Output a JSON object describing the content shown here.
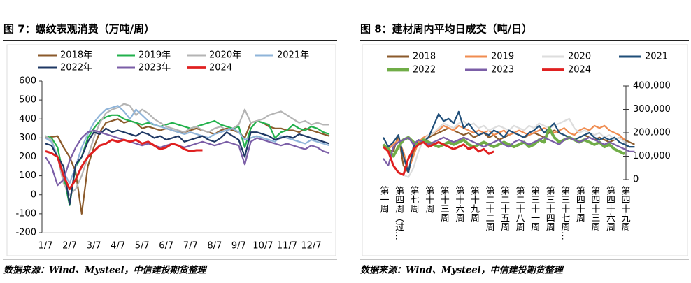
{
  "chart_data": [
    {
      "type": "line",
      "title": "图 7：螺纹表观消费（万吨/周）",
      "source": "数据来源：Wind、Mysteel，中信建投期货整理",
      "y_axis_position": "left",
      "categories": [
        "1/7",
        null,
        null,
        null,
        "2/7",
        null,
        null,
        null,
        "3/7",
        null,
        null,
        null,
        "4/7",
        null,
        null,
        null,
        "5/7",
        null,
        null,
        null,
        "6/7",
        null,
        null,
        null,
        "7/7",
        null,
        null,
        null,
        "8/7",
        null,
        null,
        null,
        "9/7",
        null,
        null,
        null,
        "10/7",
        null,
        null,
        null,
        "11/7",
        null,
        null,
        null,
        "12/7",
        null,
        null,
        null
      ],
      "ylim": [
        -200,
        600
      ],
      "yticks": [
        -200,
        -100,
        0,
        100,
        200,
        300,
        400,
        500,
        600
      ],
      "series": [
        {
          "name": "2018年",
          "color": "#8B5A2B",
          "values": [
            300,
            305,
            310,
            250,
            200,
            120,
            -100,
            150,
            250,
            330,
            380,
            390,
            400,
            380,
            390,
            380,
            350,
            360,
            350,
            340,
            350,
            340,
            330,
            330,
            340,
            350,
            340,
            330,
            320,
            340,
            350,
            340,
            330,
            300,
            380,
            390,
            380,
            360,
            350,
            350,
            340,
            340,
            330,
            350,
            340,
            330,
            320,
            310
          ]
        },
        {
          "name": "2019年",
          "color": "#22B14C",
          "values": [
            310,
            300,
            250,
            100,
            -55,
            150,
            200,
            300,
            350,
            390,
            410,
            420,
            420,
            400,
            390,
            380,
            370,
            380,
            370,
            360,
            370,
            380,
            370,
            360,
            350,
            360,
            370,
            380,
            390,
            370,
            360,
            350,
            360,
            250,
            350,
            390,
            380,
            370,
            300,
            330,
            340,
            370,
            350,
            340,
            360,
            350,
            330,
            320
          ]
        },
        {
          "name": "2020年",
          "color": "#B4B4B4",
          "values": [
            310,
            290,
            200,
            60,
            0,
            30,
            100,
            200,
            300,
            380,
            430,
            450,
            460,
            480,
            470,
            420,
            450,
            430,
            400,
            380,
            360,
            350,
            340,
            330,
            350,
            360,
            340,
            330,
            350,
            360,
            340,
            350,
            370,
            450,
            380,
            390,
            400,
            420,
            430,
            440,
            420,
            400,
            380,
            390,
            370,
            380,
            370,
            370
          ]
        },
        {
          "name": "2021年",
          "color": "#8FB4D9",
          "values": [
            300,
            280,
            200,
            120,
            60,
            150,
            250,
            320,
            380,
            420,
            450,
            460,
            470,
            440,
            400,
            450,
            420,
            390,
            370,
            360,
            350,
            340,
            330,
            320,
            330,
            320,
            310,
            300,
            320,
            330,
            340,
            350,
            330,
            290,
            300,
            310,
            300,
            290,
            280,
            310,
            300,
            290,
            280,
            270,
            290,
            280,
            270,
            260
          ]
        },
        {
          "name": "2022年",
          "color": "#1F3864",
          "values": [
            270,
            260,
            200,
            150,
            -50,
            160,
            200,
            280,
            330,
            320,
            350,
            330,
            340,
            330,
            320,
            310,
            330,
            320,
            300,
            310,
            290,
            300,
            310,
            280,
            290,
            300,
            310,
            290,
            280,
            300,
            330,
            310,
            290,
            200,
            330,
            330,
            320,
            310,
            290,
            300,
            310,
            300,
            320,
            310,
            300,
            290,
            280,
            270
          ]
        },
        {
          "name": "2023年",
          "color": "#7B5EA7",
          "values": [
            200,
            150,
            50,
            80,
            180,
            250,
            300,
            330,
            340,
            330,
            320,
            310,
            300,
            290,
            280,
            270,
            260,
            270,
            260,
            250,
            260,
            270,
            260,
            250,
            260,
            270,
            280,
            270,
            260,
            270,
            280,
            270,
            260,
            160,
            280,
            300,
            290,
            280,
            270,
            260,
            270,
            260,
            250,
            240,
            260,
            250,
            230,
            220
          ]
        },
        {
          "name": "2024",
          "color": "#E02020",
          "values": [
            230,
            220,
            200,
            100,
            30,
            80,
            150,
            200,
            230,
            260,
            270,
            290,
            280,
            290,
            280,
            290,
            270,
            280,
            260,
            240,
            250,
            270,
            260,
            240,
            230,
            235,
            235,
            null,
            null,
            null,
            null,
            null,
            null,
            null,
            null,
            null,
            null,
            null,
            null,
            null,
            null,
            null,
            null,
            null,
            null,
            null,
            null,
            null
          ]
        }
      ]
    },
    {
      "type": "line",
      "title": "图 8：建材周内平均日成交（吨/日）",
      "source": "数据来源：Wind、Mysteel，中信建投期货整理",
      "y_axis_position": "right",
      "categories": [
        "第一周",
        null,
        null,
        "第四周（过…",
        null,
        null,
        "第七周",
        null,
        null,
        "第十周",
        null,
        null,
        "第十三周",
        null,
        null,
        "第十六周",
        null,
        null,
        "第十九周",
        null,
        null,
        "第二十二周",
        null,
        null,
        "第二十五周",
        null,
        null,
        "第二十八周",
        null,
        null,
        "第三十一周",
        null,
        null,
        "第三十四周",
        null,
        null,
        "第三十七周…",
        null,
        null,
        "第四十周",
        null,
        null,
        "第四十三周",
        null,
        null,
        "第四十六周",
        null,
        null,
        "第四十九周",
        null,
        null
      ],
      "ylim": [
        0,
        400000
      ],
      "yticks": [
        0,
        {
          "value": 100000,
          "label": "100,000"
        },
        {
          "value": 200000,
          "label": "200,000"
        },
        {
          "value": 300000,
          "label": "300,000"
        },
        {
          "value": 400000,
          "label": "400,000"
        }
      ],
      "series": [
        {
          "name": "2018",
          "color": "#8B5A2B",
          "values": [
            150000,
            130000,
            120000,
            190000,
            60000,
            30000,
            120000,
            160000,
            170000,
            180000,
            190000,
            200000,
            210000,
            220000,
            210000,
            200000,
            190000,
            200000,
            180000,
            190000,
            200000,
            180000,
            190000,
            170000,
            180000,
            190000,
            200000,
            190000,
            180000,
            190000,
            200000,
            190000,
            180000,
            200000,
            210000,
            200000,
            190000,
            180000,
            170000,
            180000,
            190000,
            180000,
            170000,
            180000,
            170000,
            160000,
            170000,
            180000,
            170000,
            160000,
            150000
          ]
        },
        {
          "name": "2019",
          "color": "#F08C50",
          "values": [
            140000,
            130000,
            150000,
            170000,
            120000,
            40000,
            100000,
            160000,
            180000,
            190000,
            200000,
            210000,
            230000,
            220000,
            210000,
            230000,
            220000,
            210000,
            200000,
            210000,
            200000,
            210000,
            190000,
            200000,
            210000,
            190000,
            200000,
            210000,
            200000,
            190000,
            200000,
            210000,
            220000,
            210000,
            200000,
            210000,
            220000,
            200000,
            190000,
            210000,
            220000,
            210000,
            230000,
            220000,
            230000,
            210000,
            200000,
            190000,
            170000,
            null,
            null
          ]
        },
        {
          "name": "2020",
          "color": "#DDDDDD",
          "values": [
            null,
            null,
            null,
            null,
            20000,
            10000,
            50000,
            120000,
            170000,
            190000,
            200000,
            220000,
            240000,
            230000,
            220000,
            240000,
            250000,
            230000,
            240000,
            220000,
            230000,
            210000,
            220000,
            230000,
            220000,
            210000,
            230000,
            220000,
            210000,
            230000,
            220000,
            240000,
            230000,
            220000,
            230000,
            240000,
            250000,
            260000,
            220000,
            200000,
            210000,
            200000,
            190000,
            200000,
            180000,
            190000,
            170000,
            180000,
            160000,
            null,
            null
          ]
        },
        {
          "name": "2021",
          "color": "#1F4E79",
          "values": [
            180000,
            140000,
            160000,
            190000,
            100000,
            30000,
            140000,
            170000,
            160000,
            180000,
            230000,
            280000,
            250000,
            260000,
            240000,
            290000,
            220000,
            240000,
            210000,
            190000,
            200000,
            190000,
            210000,
            200000,
            180000,
            210000,
            200000,
            190000,
            180000,
            200000,
            210000,
            230000,
            200000,
            220000,
            240000,
            200000,
            190000,
            180000,
            170000,
            180000,
            190000,
            200000,
            180000,
            170000,
            180000,
            170000,
            180000,
            160000,
            150000,
            140000,
            140000
          ]
        },
        {
          "name": "2022",
          "color": "#70AD47",
          "values": [
            150000,
            130000,
            100000,
            140000,
            170000,
            180000,
            160000,
            150000,
            170000,
            160000,
            150000,
            140000,
            150000,
            160000,
            150000,
            160000,
            170000,
            150000,
            140000,
            150000,
            160000,
            150000,
            140000,
            150000,
            160000,
            150000,
            140000,
            150000,
            160000,
            140000,
            150000,
            170000,
            160000,
            220000,
            180000,
            160000,
            170000,
            180000,
            170000,
            160000,
            170000,
            160000,
            150000,
            160000,
            140000,
            150000,
            130000,
            120000,
            110000,
            null,
            null
          ]
        },
        {
          "name": "2023",
          "color": "#7B5EA7",
          "values": [
            90000,
            60000,
            140000,
            160000,
            170000,
            180000,
            150000,
            170000,
            160000,
            150000,
            160000,
            170000,
            180000,
            170000,
            160000,
            170000,
            180000,
            170000,
            160000,
            150000,
            140000,
            150000,
            160000,
            170000,
            150000,
            140000,
            160000,
            170000,
            160000,
            150000,
            160000,
            170000,
            180000,
            170000,
            160000,
            150000,
            170000,
            180000,
            170000,
            160000,
            170000,
            180000,
            170000,
            160000,
            150000,
            160000,
            150000,
            140000,
            130000,
            120000,
            120000
          ]
        },
        {
          "name": "2024",
          "color": "#E02020",
          "values": [
            140000,
            120000,
            60000,
            30000,
            20000,
            90000,
            130000,
            150000,
            160000,
            140000,
            150000,
            160000,
            150000,
            140000,
            130000,
            140000,
            150000,
            130000,
            140000,
            120000,
            130000,
            110000,
            120000,
            null,
            null,
            null,
            null,
            null,
            null,
            null,
            null,
            null,
            null,
            null,
            null,
            null,
            null,
            null,
            null,
            null,
            null,
            null,
            null,
            null,
            null,
            null,
            null,
            null,
            null,
            null,
            null
          ]
        }
      ]
    }
  ]
}
